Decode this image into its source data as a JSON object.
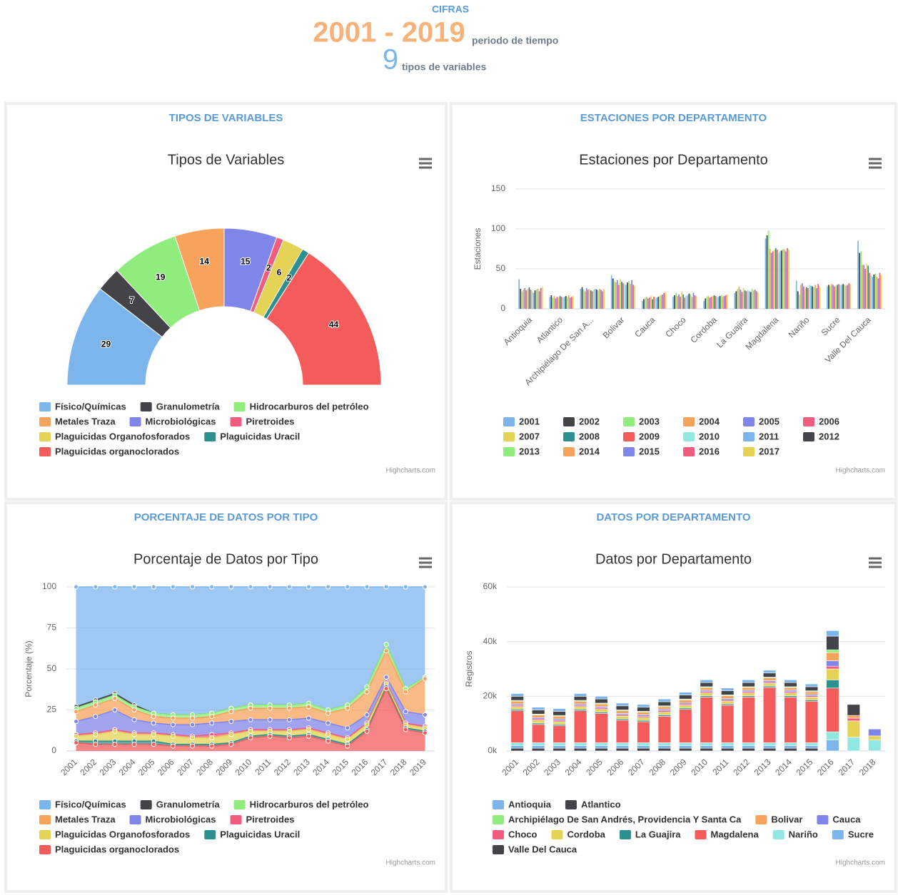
{
  "header": {
    "label": "CIFRAS",
    "period": "2001 - 2019",
    "period_label": "periodo de tiempo",
    "count": 9,
    "count_label": "tipos de variables"
  },
  "sections": [
    "TIPOS DE VARIABLES",
    "ESTACIONES POR DEPARTAMENTO",
    "PORCENTAJE DE DATOS POR TIPO",
    "DATOS POR DEPARTAMENTO"
  ],
  "credits": "Highcharts.com",
  "chart_data": [
    {
      "type": "pie",
      "title": "Tipos de Variables",
      "categories": [
        "Físico/Químicas",
        "Granulometría",
        "Hidrocarburos del petróleo",
        "Metales Traza",
        "Microbiológicas",
        "Piretroides",
        "Plaguicidas Organofosforados",
        "Plaguicidas Uracil",
        "Plaguicidas organoclorados"
      ],
      "values": [
        29,
        7,
        19,
        14,
        15,
        2,
        6,
        2,
        44
      ],
      "colors": [
        "#7cb5ec",
        "#434348",
        "#90ed7d",
        "#f7a35c",
        "#8085e9",
        "#f15c80",
        "#e4d354",
        "#2b908f",
        "#f45b5b"
      ]
    },
    {
      "type": "bar",
      "title": "Estaciones por Departamento",
      "ylabel": "Estaciones",
      "categories": [
        "Antioquia",
        "Atlantico",
        "Archipiélago De San A...",
        "Bolivar",
        "Cauca",
        "Choco",
        "Cordoba",
        "La Guajira",
        "Magdalena",
        "Nariño",
        "Sucre",
        "Valle Del Cauca"
      ],
      "ylim": [
        0,
        150
      ],
      "yticks": [
        0,
        50,
        100,
        150
      ],
      "grid": true,
      "series": [
        {
          "name": "2001",
          "color": "#7cb5ec",
          "values": [
            37,
            15,
            25,
            42,
            10,
            15,
            10,
            20,
            88,
            35,
            28,
            85
          ]
        },
        {
          "name": "2002",
          "color": "#434348",
          "values": [
            25,
            17,
            27,
            38,
            12,
            17,
            13,
            22,
            92,
            22,
            30,
            70
          ]
        },
        {
          "name": "2003",
          "color": "#90ed7d",
          "values": [
            22,
            14,
            24,
            35,
            14,
            20,
            15,
            25,
            98,
            18,
            29,
            72
          ]
        },
        {
          "name": "2004",
          "color": "#f7a35c",
          "values": [
            24,
            16,
            22,
            33,
            15,
            16,
            16,
            28,
            75,
            30,
            31,
            55
          ]
        },
        {
          "name": "2005",
          "color": "#8085e9",
          "values": [
            26,
            13,
            26,
            36,
            13,
            18,
            14,
            24,
            70,
            32,
            30,
            55
          ]
        },
        {
          "name": "2006",
          "color": "#f15c80",
          "values": [
            23,
            15,
            24,
            30,
            14,
            15,
            15,
            21,
            72,
            28,
            28,
            50
          ]
        },
        {
          "name": "2007",
          "color": "#e4d354",
          "values": [
            25,
            14,
            25,
            37,
            16,
            22,
            16,
            26,
            74,
            25,
            29,
            56
          ]
        },
        {
          "name": "2008",
          "color": "#2b908f",
          "values": [
            27,
            16,
            23,
            34,
            12,
            18,
            17,
            23,
            76,
            27,
            30,
            54
          ]
        },
        {
          "name": "2009",
          "color": "#f45b5b",
          "values": [
            24,
            15,
            22,
            32,
            15,
            14,
            16,
            22,
            74,
            26,
            31,
            45
          ]
        },
        {
          "name": "2010",
          "color": "#91e8e1",
          "values": [
            22,
            14,
            24,
            31,
            13,
            16,
            15,
            24,
            70,
            30,
            30,
            42
          ]
        },
        {
          "name": "2011",
          "color": "#7cb5ec",
          "values": [
            20,
            15,
            25,
            30,
            14,
            17,
            15,
            22,
            72,
            29,
            30,
            40
          ]
        },
        {
          "name": "2012",
          "color": "#434348",
          "values": [
            23,
            16,
            24,
            33,
            15,
            19,
            16,
            21,
            73,
            28,
            31,
            43
          ]
        },
        {
          "name": "2013",
          "color": "#90ed7d",
          "values": [
            24,
            15,
            23,
            35,
            16,
            18,
            17,
            25,
            75,
            27,
            30,
            44
          ]
        },
        {
          "name": "2014",
          "color": "#f7a35c",
          "values": [
            25,
            17,
            25,
            31,
            17,
            15,
            15,
            23,
            74,
            30,
            29,
            40
          ]
        },
        {
          "name": "2015",
          "color": "#8085e9",
          "values": [
            22,
            14,
            24,
            36,
            18,
            20,
            16,
            24,
            72,
            26,
            30,
            38
          ]
        },
        {
          "name": "2016",
          "color": "#f15c80",
          "values": [
            26,
            15,
            22,
            30,
            20,
            17,
            17,
            22,
            76,
            31,
            32,
            45
          ]
        },
        {
          "name": "2017",
          "color": "#e4d354",
          "values": [
            27,
            16,
            25,
            29,
            21,
            16,
            18,
            20,
            74,
            28,
            31,
            42
          ]
        }
      ]
    },
    {
      "type": "area",
      "title": "Porcentaje de Datos por Tipo",
      "ylabel": "Porcentaje (%)",
      "stacked": true,
      "categories": [
        "2001",
        "2002",
        "2003",
        "2004",
        "2005",
        "2006",
        "2007",
        "2008",
        "2009",
        "2010",
        "2011",
        "2012",
        "2013",
        "2014",
        "2015",
        "2016",
        "2017",
        "2018",
        "2019"
      ],
      "ylim": [
        0,
        100
      ],
      "yticks": [
        0,
        25,
        50,
        75,
        100
      ],
      "grid": true,
      "series": [
        {
          "name": "Físico/Químicas",
          "color": "#7cb5ec",
          "values": [
            73,
            69,
            65,
            72,
            77,
            78,
            78,
            77,
            74,
            72,
            72,
            72,
            71,
            75,
            72,
            61,
            35,
            62,
            55
          ]
        },
        {
          "name": "Granulometría",
          "color": "#434348",
          "values": [
            1,
            1,
            1,
            1,
            0,
            0,
            0,
            0,
            0,
            0,
            0,
            0,
            0,
            0,
            0,
            0,
            0,
            0,
            0
          ]
        },
        {
          "name": "Hidrocarburos del petróleo",
          "color": "#90ed7d",
          "values": [
            2,
            2,
            2,
            2,
            2,
            2,
            2,
            2,
            2,
            2,
            2,
            2,
            2,
            2,
            2,
            3,
            4,
            2,
            1
          ]
        },
        {
          "name": "Metales Traza",
          "color": "#f7a35c",
          "values": [
            6,
            7,
            7,
            6,
            4,
            4,
            4,
            4,
            6,
            7,
            7,
            7,
            7,
            6,
            12,
            14,
            16,
            12,
            22
          ]
        },
        {
          "name": "Microbiológicas",
          "color": "#8085e9",
          "values": [
            8,
            10,
            12,
            8,
            6,
            6,
            7,
            7,
            7,
            6,
            6,
            6,
            6,
            6,
            6,
            5,
            3,
            7,
            7
          ]
        },
        {
          "name": "Piretroides",
          "color": "#f15c80",
          "values": [
            1,
            1,
            1,
            1,
            1,
            1,
            1,
            2,
            1,
            1,
            1,
            1,
            1,
            1,
            1,
            1,
            1,
            1,
            1
          ]
        },
        {
          "name": "Plaguicidas Organofosforados",
          "color": "#e4d354",
          "values": [
            3,
            4,
            6,
            4,
            4,
            5,
            4,
            4,
            5,
            3,
            2,
            3,
            3,
            3,
            3,
            3,
            2,
            2,
            2
          ]
        },
        {
          "name": "Plaguicidas Uracil",
          "color": "#2b908f",
          "values": [
            1,
            2,
            2,
            2,
            2,
            1,
            1,
            1,
            1,
            1,
            1,
            1,
            1,
            1,
            1,
            1,
            1,
            1,
            1
          ]
        },
        {
          "name": "Plaguicidas organoclorados",
          "color": "#f45b5b",
          "values": [
            5,
            4,
            4,
            4,
            4,
            3,
            3,
            3,
            4,
            8,
            9,
            8,
            9,
            6,
            3,
            12,
            38,
            13,
            11
          ]
        }
      ]
    },
    {
      "type": "bar",
      "title": "Datos por Departamento",
      "ylabel": "Registros",
      "stacked": true,
      "categories": [
        "2001",
        "2002",
        "2003",
        "2004",
        "2005",
        "2006",
        "2007",
        "2008",
        "2009",
        "2010",
        "2011",
        "2012",
        "2013",
        "2014",
        "2015",
        "2016",
        "2017",
        "2018"
      ],
      "ylim": [
        0,
        60000
      ],
      "yticks": [
        {
          "value": 0,
          "label": "0k"
        },
        {
          "value": 20000,
          "label": "20k"
        },
        {
          "value": 40000,
          "label": "40k"
        },
        {
          "value": 60000,
          "label": "60k"
        }
      ],
      "grid": true,
      "series": [
        {
          "name": "Antioquia",
          "color": "#7cb5ec",
          "values": [
            1000,
            1000,
            1000,
            1000,
            1000,
            1000,
            1000,
            1000,
            1000,
            1000,
            1000,
            1000,
            1000,
            1000,
            1000,
            2000,
            0,
            0
          ]
        },
        {
          "name": "Atlantico",
          "color": "#434348",
          "values": [
            1500,
            1500,
            1500,
            1500,
            1500,
            1500,
            1500,
            1500,
            1500,
            1500,
            1500,
            1500,
            1500,
            1500,
            1500,
            5000,
            4000,
            0
          ]
        },
        {
          "name": "Archipiélago De San Andrés, Providencia Y Santa Ca",
          "color": "#90ed7d",
          "values": [
            300,
            300,
            300,
            300,
            300,
            300,
            300,
            300,
            300,
            300,
            300,
            300,
            300,
            300,
            300,
            1000,
            0,
            0
          ]
        },
        {
          "name": "Bolivar",
          "color": "#f7a35c",
          "values": [
            1000,
            1000,
            1000,
            1000,
            1000,
            1000,
            1000,
            1000,
            1000,
            1000,
            1000,
            1000,
            1000,
            1000,
            1000,
            3000,
            1000,
            0
          ]
        },
        {
          "name": "Cauca",
          "color": "#8085e9",
          "values": [
            500,
            500,
            500,
            500,
            500,
            500,
            500,
            500,
            500,
            500,
            500,
            500,
            500,
            500,
            500,
            2000,
            0,
            2500
          ]
        },
        {
          "name": "Choco",
          "color": "#f15c80",
          "values": [
            500,
            500,
            500,
            500,
            500,
            500,
            500,
            500,
            500,
            500,
            500,
            500,
            500,
            500,
            500,
            1000,
            1000,
            0
          ]
        },
        {
          "name": "Cordoba",
          "color": "#e4d354",
          "values": [
            1000,
            1000,
            1000,
            1000,
            1000,
            1000,
            1000,
            1000,
            1000,
            1000,
            1000,
            1000,
            1000,
            1000,
            1000,
            4000,
            6000,
            1500
          ]
        },
        {
          "name": "La Guajira",
          "color": "#2b908f",
          "values": [
            500,
            500,
            500,
            500,
            500,
            500,
            500,
            500,
            500,
            500,
            500,
            500,
            500,
            500,
            500,
            3000,
            0,
            0
          ]
        },
        {
          "name": "Magdalena",
          "color": "#f45b5b",
          "values": [
            11700,
            6700,
            6200,
            11700,
            10700,
            8200,
            7700,
            9700,
            12200,
            16700,
            13700,
            16700,
            20200,
            16700,
            15200,
            16000,
            0,
            0
          ]
        },
        {
          "name": "Nariño",
          "color": "#91e8e1",
          "values": [
            1000,
            1000,
            1000,
            1000,
            1000,
            1000,
            1000,
            1000,
            1000,
            1000,
            1000,
            1000,
            1000,
            1000,
            1000,
            3000,
            5000,
            4000
          ]
        },
        {
          "name": "Sucre",
          "color": "#7cb5ec",
          "values": [
            1000,
            1000,
            1000,
            1000,
            1000,
            1000,
            1000,
            1000,
            1000,
            1000,
            1000,
            1000,
            1000,
            1000,
            1000,
            4000,
            0,
            0
          ]
        },
        {
          "name": "Valle Del Cauca",
          "color": "#434348",
          "values": [
            1000,
            1000,
            1000,
            1000,
            1000,
            1000,
            1000,
            1000,
            1000,
            1000,
            1000,
            1000,
            1000,
            1000,
            1000,
            0,
            0,
            0
          ]
        }
      ]
    }
  ]
}
